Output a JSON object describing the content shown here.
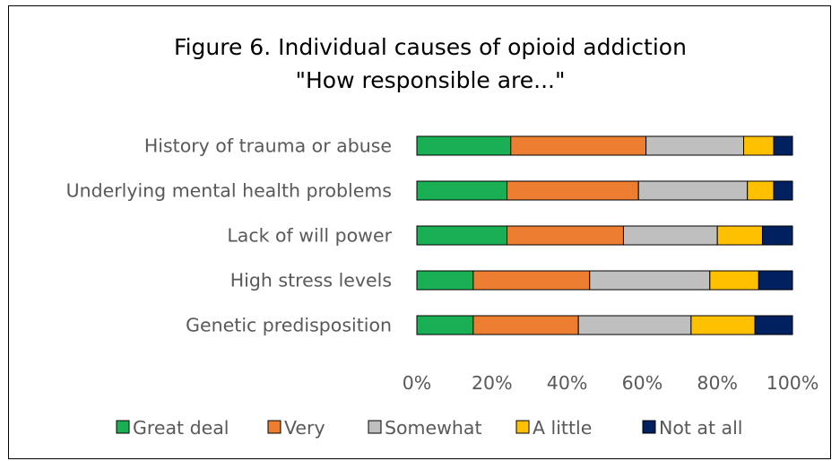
{
  "chart_data": {
    "type": "bar",
    "orientation": "horizontal",
    "stacked": "percent",
    "title": "Figure 6. Individual causes of opioid addiction",
    "subtitle": "\"How responsible are...\"",
    "categories": [
      "History of trauma or abuse",
      "Underlying mental health problems",
      "Lack of will power",
      "High stress levels",
      "Genetic predisposition"
    ],
    "series": [
      {
        "name": "Great deal",
        "color": "#1aaf54",
        "values": [
          25,
          24,
          24,
          15,
          15
        ]
      },
      {
        "name": "Very",
        "color": "#ed7d31",
        "values": [
          36,
          35,
          31,
          31,
          28
        ]
      },
      {
        "name": "Somewhat",
        "color": "#bfbfbf",
        "values": [
          26,
          29,
          25,
          32,
          30
        ]
      },
      {
        "name": "A little",
        "color": "#ffc000",
        "values": [
          8,
          7,
          12,
          13,
          17
        ]
      },
      {
        "name": "Not at all",
        "color": "#002060",
        "values": [
          5,
          5,
          8,
          9,
          10
        ]
      }
    ],
    "xlim": [
      0,
      100
    ],
    "x_ticks": [
      "0%",
      "20%",
      "40%",
      "60%",
      "80%",
      "100%"
    ],
    "xlabel": "",
    "ylabel": "",
    "grid": false,
    "legend_position": "bottom"
  }
}
